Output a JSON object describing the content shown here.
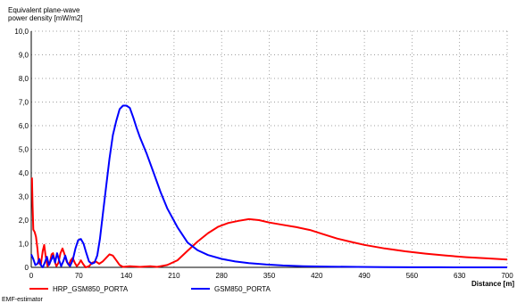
{
  "chart_data": {
    "type": "line",
    "ylabel_line1": "Equivalent plane-wave",
    "ylabel_line2": "power density [mW/m2]",
    "xlabel": "Distance [m]",
    "footer": "EMF-estimator",
    "xlim": [
      0,
      700
    ],
    "ylim": [
      0,
      10
    ],
    "x_ticks": [
      "0",
      "70",
      "140",
      "210",
      "280",
      "350",
      "420",
      "490",
      "560",
      "630",
      "700"
    ],
    "y_ticks": [
      "0",
      "1,0",
      "2,0",
      "3,0",
      "4,0",
      "5,0",
      "6,0",
      "7,0",
      "8,0",
      "9,0",
      "10,0"
    ],
    "grid": true,
    "legend_position": "bottom",
    "series": [
      {
        "name": "HRP_GSM850_PORTA",
        "color": "#ff0000",
        "points": [
          [
            1,
            3.8
          ],
          [
            2,
            2.6
          ],
          [
            3,
            1.6
          ],
          [
            5,
            1.5
          ],
          [
            7,
            1.3
          ],
          [
            9,
            0.8
          ],
          [
            11,
            0.2
          ],
          [
            14,
            0.1
          ],
          [
            17,
            0.7
          ],
          [
            19,
            0.95
          ],
          [
            21,
            0.5
          ],
          [
            24,
            0.05
          ],
          [
            27,
            0.15
          ],
          [
            30,
            0.55
          ],
          [
            32,
            0.6
          ],
          [
            35,
            0.2
          ],
          [
            37,
            0.05
          ],
          [
            40,
            0.2
          ],
          [
            43,
            0.6
          ],
          [
            46,
            0.8
          ],
          [
            49,
            0.55
          ],
          [
            52,
            0.25
          ],
          [
            55,
            0.1
          ],
          [
            58,
            0.3
          ],
          [
            61,
            0.4
          ],
          [
            64,
            0.2
          ],
          [
            67,
            0.05
          ],
          [
            70,
            0.15
          ],
          [
            73,
            0.3
          ],
          [
            76,
            0.15
          ],
          [
            80,
            0.0
          ],
          [
            85,
            0.05
          ],
          [
            90,
            0.2
          ],
          [
            95,
            0.25
          ],
          [
            100,
            0.15
          ],
          [
            105,
            0.25
          ],
          [
            110,
            0.4
          ],
          [
            115,
            0.55
          ],
          [
            120,
            0.5
          ],
          [
            125,
            0.3
          ],
          [
            130,
            0.1
          ],
          [
            135,
            0.02
          ],
          [
            145,
            0.05
          ],
          [
            160,
            0.02
          ],
          [
            175,
            0.05
          ],
          [
            185,
            0.02
          ],
          [
            200,
            0.1
          ],
          [
            215,
            0.3
          ],
          [
            230,
            0.7
          ],
          [
            245,
            1.1
          ],
          [
            260,
            1.45
          ],
          [
            275,
            1.72
          ],
          [
            290,
            1.88
          ],
          [
            305,
            1.97
          ],
          [
            320,
            2.04
          ],
          [
            335,
            2.0
          ],
          [
            350,
            1.9
          ],
          [
            370,
            1.8
          ],
          [
            390,
            1.7
          ],
          [
            410,
            1.58
          ],
          [
            430,
            1.4
          ],
          [
            450,
            1.22
          ],
          [
            470,
            1.08
          ],
          [
            490,
            0.95
          ],
          [
            520,
            0.8
          ],
          [
            550,
            0.68
          ],
          [
            580,
            0.58
          ],
          [
            610,
            0.5
          ],
          [
            640,
            0.43
          ],
          [
            670,
            0.38
          ],
          [
            700,
            0.33
          ]
        ]
      },
      {
        "name": "GSM850_PORTA",
        "color": "#0000ff",
        "points": [
          [
            0,
            0.55
          ],
          [
            3,
            0.35
          ],
          [
            6,
            0.1
          ],
          [
            9,
            0.15
          ],
          [
            12,
            0.35
          ],
          [
            14,
            0.1
          ],
          [
            17,
            0.0
          ],
          [
            20,
            0.2
          ],
          [
            23,
            0.45
          ],
          [
            26,
            0.1
          ],
          [
            29,
            0.3
          ],
          [
            32,
            0.5
          ],
          [
            35,
            0.2
          ],
          [
            38,
            0.6
          ],
          [
            41,
            0.3
          ],
          [
            44,
            0.05
          ],
          [
            47,
            0.25
          ],
          [
            50,
            0.5
          ],
          [
            53,
            0.2
          ],
          [
            57,
            0.05
          ],
          [
            61,
            0.3
          ],
          [
            65,
            0.8
          ],
          [
            69,
            1.15
          ],
          [
            73,
            1.2
          ],
          [
            77,
            1.0
          ],
          [
            81,
            0.6
          ],
          [
            85,
            0.25
          ],
          [
            89,
            0.15
          ],
          [
            93,
            0.2
          ],
          [
            97,
            0.5
          ],
          [
            101,
            1.2
          ],
          [
            105,
            2.2
          ],
          [
            110,
            3.4
          ],
          [
            115,
            4.6
          ],
          [
            120,
            5.6
          ],
          [
            125,
            6.2
          ],
          [
            130,
            6.7
          ],
          [
            135,
            6.85
          ],
          [
            140,
            6.85
          ],
          [
            145,
            6.75
          ],
          [
            150,
            6.35
          ],
          [
            155,
            5.9
          ],
          [
            160,
            5.5
          ],
          [
            170,
            4.8
          ],
          [
            180,
            4.0
          ],
          [
            190,
            3.2
          ],
          [
            200,
            2.5
          ],
          [
            215,
            1.7
          ],
          [
            230,
            1.05
          ],
          [
            245,
            0.72
          ],
          [
            260,
            0.52
          ],
          [
            280,
            0.36
          ],
          [
            300,
            0.25
          ],
          [
            320,
            0.18
          ],
          [
            345,
            0.12
          ],
          [
            370,
            0.08
          ],
          [
            400,
            0.05
          ],
          [
            440,
            0.03
          ],
          [
            480,
            0.02
          ],
          [
            520,
            0.01
          ],
          [
            560,
            0.005
          ],
          [
            600,
            0.003
          ],
          [
            650,
            0.001
          ],
          [
            700,
            0.0
          ]
        ]
      }
    ]
  }
}
